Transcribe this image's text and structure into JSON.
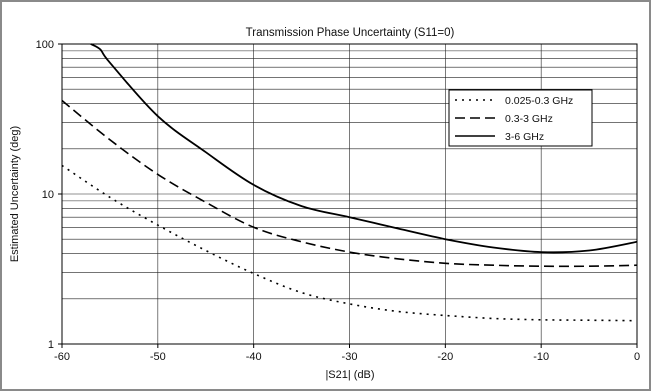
{
  "chart_data": {
    "type": "line",
    "title": "Transmission Phase Uncertainty (S11=0)",
    "xlabel": "|S21| (dB)",
    "ylabel": "Estimated Uncertainty (deg)",
    "xlim": [
      -60,
      0
    ],
    "ylim": [
      1,
      100
    ],
    "yscale": "log",
    "grid": true,
    "legend_position": "upper-right",
    "x_ticks": [
      -60,
      -50,
      -40,
      -30,
      -20,
      -10,
      0
    ],
    "x_tick_labels": [
      "-60",
      "-50",
      "-40",
      "-30",
      "-20",
      "-10",
      "0"
    ],
    "y_ticks": [
      1,
      10,
      100
    ],
    "y_tick_labels": [
      "1",
      "10",
      "100"
    ],
    "series": [
      {
        "name": "0.025-0.3 GHz",
        "style": "dotted",
        "x": [
          -60,
          -55,
          -50,
          -45,
          -40,
          -35,
          -30,
          -25,
          -20,
          -15,
          -10,
          -5,
          0
        ],
        "y": [
          15.5,
          9.5,
          6.2,
          4.2,
          2.95,
          2.2,
          1.85,
          1.65,
          1.55,
          1.48,
          1.45,
          1.44,
          1.43
        ]
      },
      {
        "name": "0.3-3 GHz",
        "style": "dashed",
        "x": [
          -60,
          -55,
          -50,
          -45,
          -40,
          -35,
          -30,
          -25,
          -20,
          -15,
          -10,
          -5,
          0
        ],
        "y": [
          42,
          23,
          13.5,
          8.8,
          6.0,
          4.8,
          4.1,
          3.7,
          3.45,
          3.35,
          3.3,
          3.3,
          3.35
        ]
      },
      {
        "name": "3-6 GHz",
        "style": "solid",
        "x": [
          -57,
          -56,
          -55,
          -50,
          -45,
          -40,
          -35,
          -30,
          -25,
          -20,
          -15,
          -10,
          -5,
          0
        ],
        "y": [
          100,
          92,
          75,
          33,
          19,
          11.5,
          8.3,
          7.0,
          5.9,
          5.0,
          4.4,
          4.1,
          4.2,
          4.8
        ]
      }
    ]
  }
}
